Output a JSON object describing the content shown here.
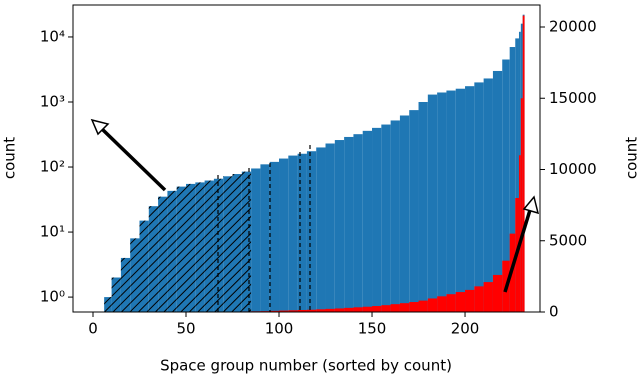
{
  "chart_data": {
    "type": "histogram",
    "xlabel": "Space group number (sorted by count)",
    "ylabel": "count",
    "y2label": "count",
    "bins": [
      6,
      10,
      15,
      20,
      25,
      30,
      35,
      40,
      45,
      50,
      55,
      60,
      65,
      70,
      75,
      80,
      85,
      90,
      95,
      100,
      105,
      110,
      115,
      120,
      125,
      130,
      135,
      140,
      145,
      150,
      155,
      160,
      165,
      170,
      175,
      180,
      185,
      190,
      195,
      200,
      205,
      210,
      215,
      220,
      224,
      227,
      229,
      230,
      231,
      232
    ],
    "series": [
      {
        "color": "#1f77b4",
        "values": [
          1,
          2,
          4,
          8,
          15,
          25,
          35,
          43,
          50,
          55,
          58,
          62,
          66,
          72,
          78,
          85,
          95,
          110,
          120,
          135,
          150,
          160,
          175,
          200,
          230,
          260,
          290,
          320,
          360,
          400,
          450,
          520,
          620,
          750,
          1000,
          1300,
          1400,
          1500,
          1600,
          1750,
          2000,
          2300,
          3000,
          4500,
          7000,
          9500,
          12000,
          16000,
          22000
        ]
      },
      {
        "color": "#ff0000",
        "axis": "y2",
        "values": [
          0,
          0,
          0,
          1,
          1,
          2,
          2,
          3,
          3,
          4,
          5,
          10,
          15,
          20,
          30,
          40,
          50,
          60,
          80,
          100,
          120,
          140,
          160,
          190,
          220,
          250,
          290,
          330,
          370,
          420,
          480,
          550,
          620,
          700,
          800,
          950,
          1100,
          1250,
          1400,
          1550,
          1800,
          2100,
          2600,
          3600,
          5500,
          8000,
          11000,
          15000,
          20800
        ]
      }
    ],
    "xlim": [
      -10.75,
      240.3
    ],
    "xticks": [
      0,
      50,
      100,
      150,
      200
    ],
    "ylog": true,
    "ylim": [
      0.59,
      31000
    ],
    "yticks": [
      {
        "value": 1,
        "label": "10⁰"
      },
      {
        "value": 10,
        "label": "10¹"
      },
      {
        "value": 100,
        "label": "10²"
      },
      {
        "value": 1000,
        "label": "10³"
      },
      {
        "value": 10000,
        "label": "10⁴"
      }
    ],
    "y2lim": [
      0,
      21544
    ],
    "y2ticks": [
      0,
      5000,
      10000,
      15000,
      20000
    ]
  }
}
